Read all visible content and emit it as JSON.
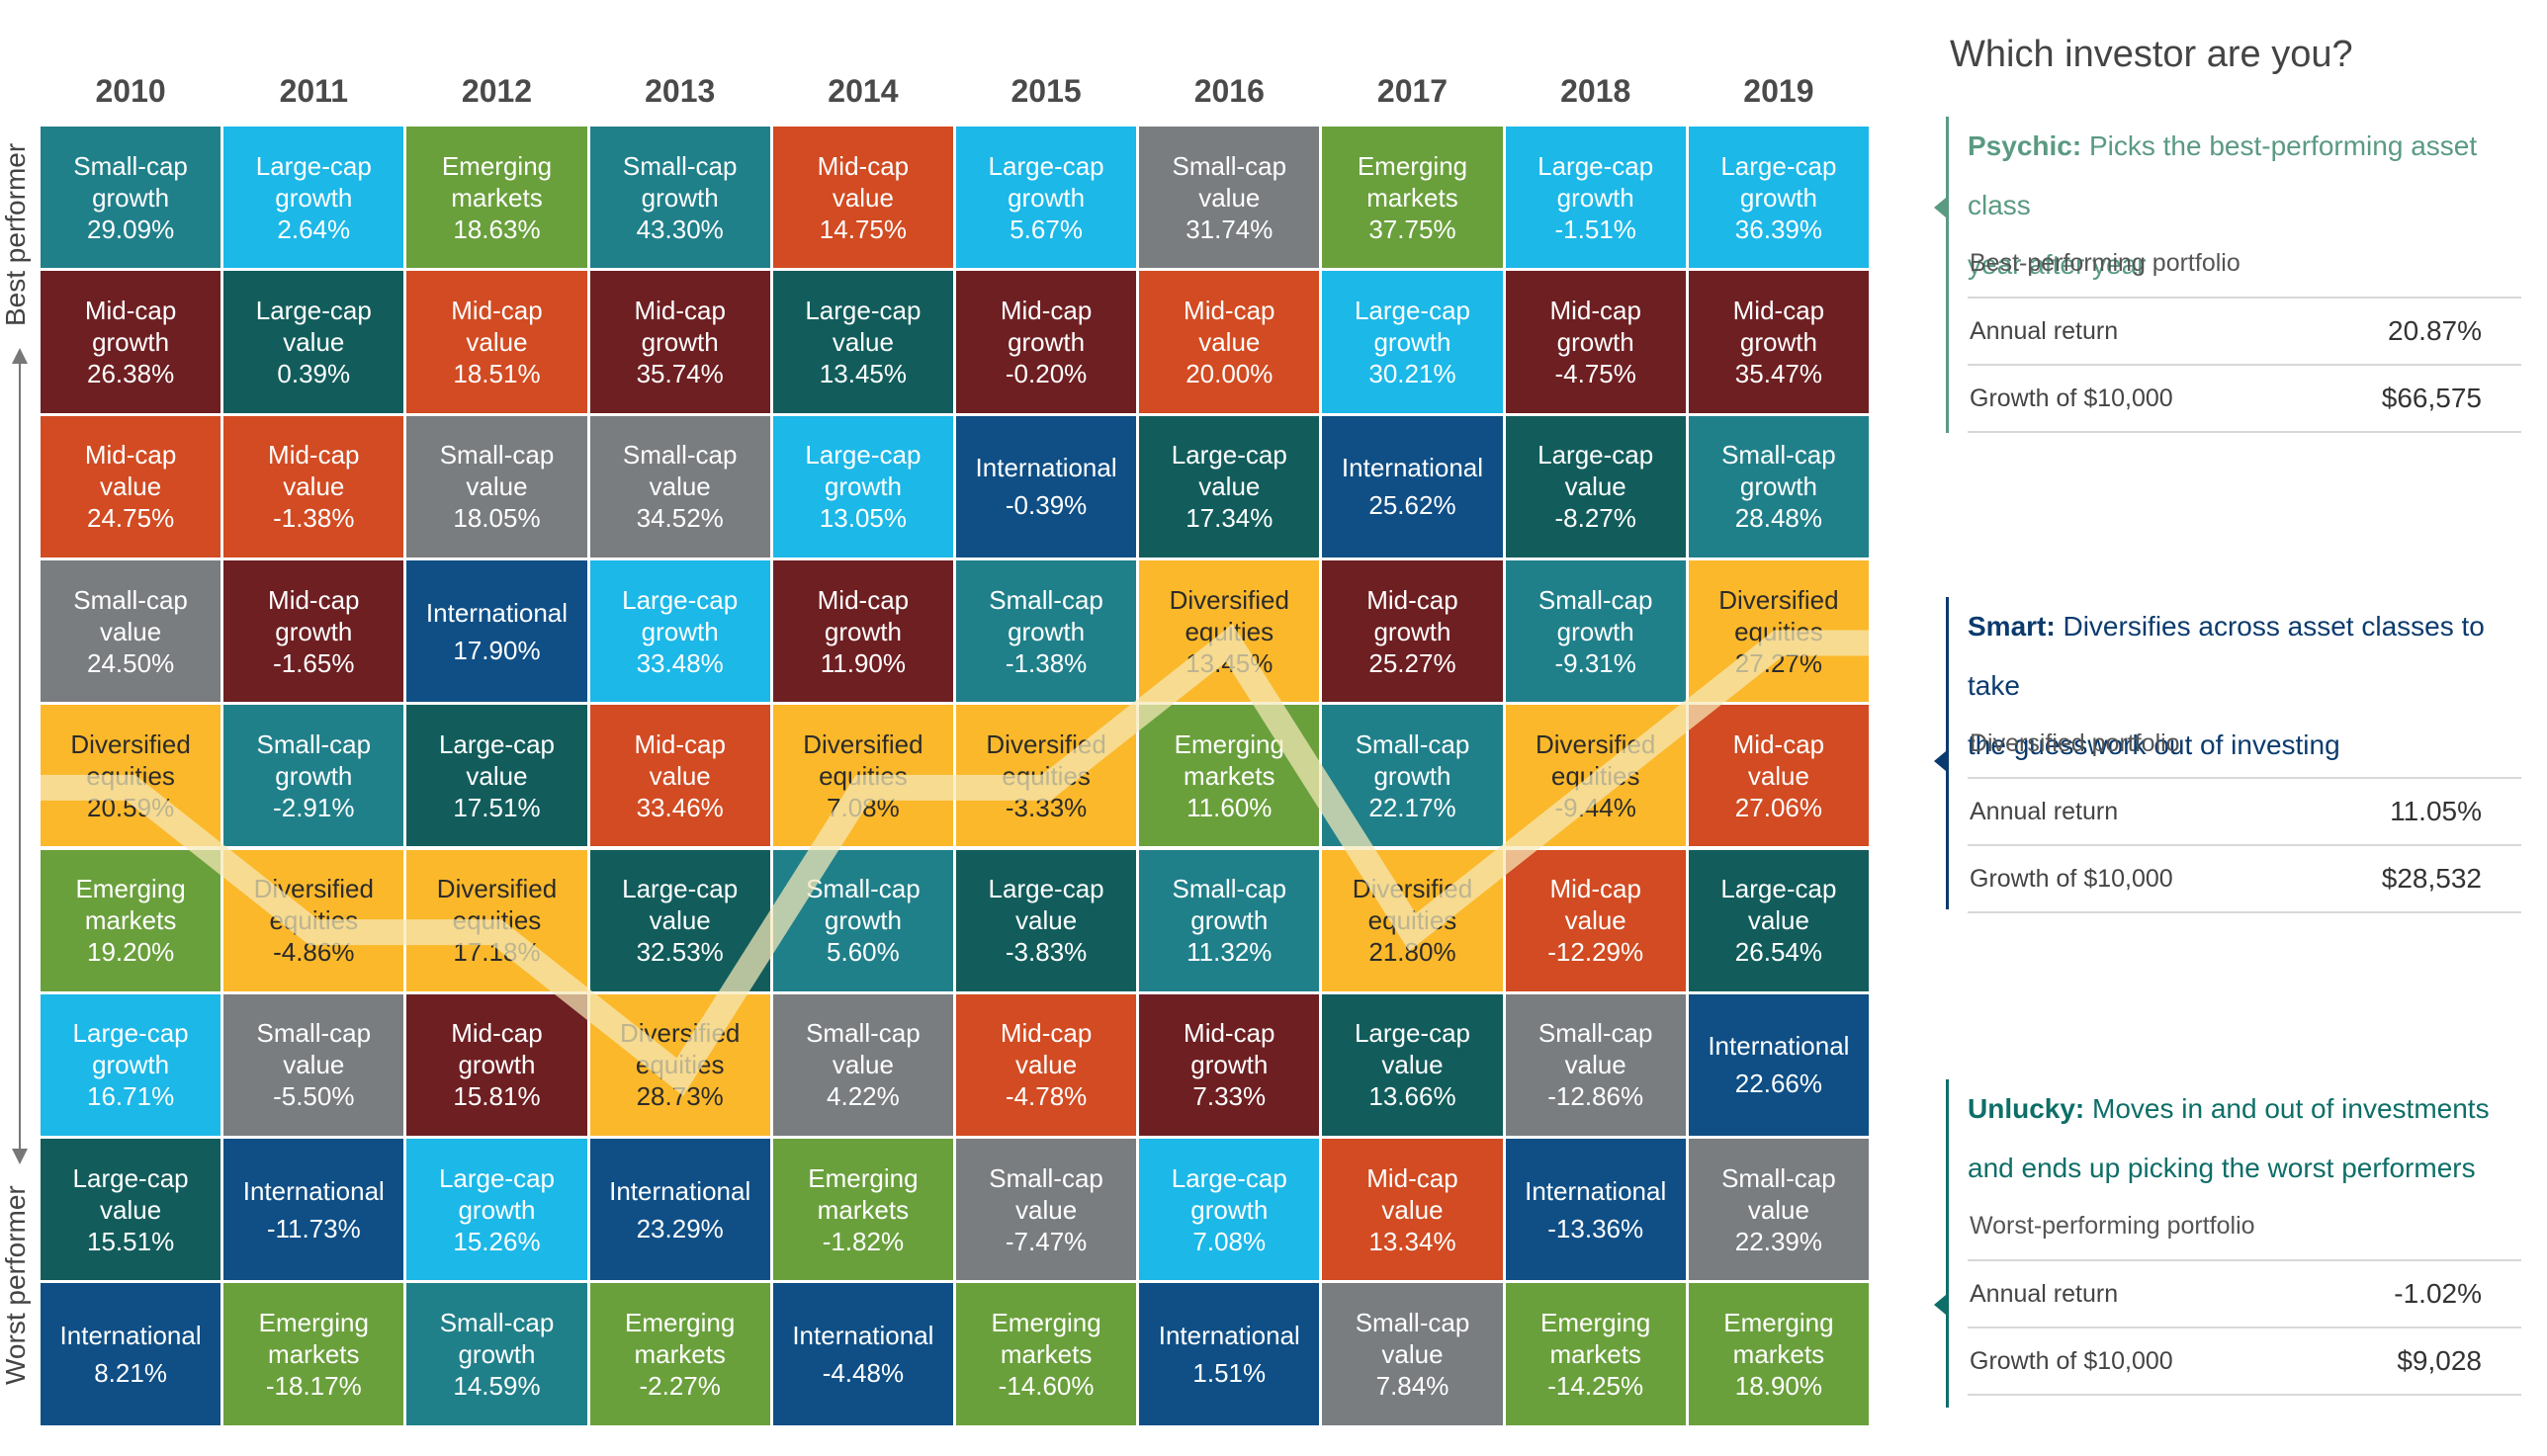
{
  "axis": {
    "best": "Best performer",
    "worst": "Worst performer"
  },
  "colors": {
    "Small-cap growth": "#20808a",
    "Large-cap growth": "#1cb8e8",
    "Emerging markets": "#6aa03c",
    "Mid-cap value": "#d24b22",
    "Small-cap value": "#7a7d80",
    "Mid-cap growth": "#6e1f22",
    "Large-cap value": "#125d5c",
    "International": "#0f4f86",
    "Diversified equities": "#fbb82a",
    "highlight_line": "#f5e9b8",
    "psychic": "#5a9a82",
    "smart": "#0b3b6e",
    "unlucky": "#0e6e68"
  },
  "chart_data": {
    "type": "table",
    "years": [
      "2010",
      "2011",
      "2012",
      "2013",
      "2014",
      "2015",
      "2016",
      "2017",
      "2018",
      "2019"
    ],
    "columns": [
      [
        [
          "Small-cap",
          "growth",
          "29.09%"
        ],
        [
          "Mid-cap",
          "growth",
          "26.38%"
        ],
        [
          "Mid-cap",
          "value",
          "24.75%"
        ],
        [
          "Small-cap",
          "value",
          "24.50%"
        ],
        [
          "Diversified",
          "equities",
          "20.59%"
        ],
        [
          "Emerging",
          "markets",
          "19.20%"
        ],
        [
          "Large-cap",
          "growth",
          "16.71%"
        ],
        [
          "Large-cap",
          "value",
          "15.51%"
        ],
        [
          "International",
          "",
          "8.21%"
        ]
      ],
      [
        [
          "Large-cap",
          "growth",
          "2.64%"
        ],
        [
          "Large-cap",
          "value",
          "0.39%"
        ],
        [
          "Mid-cap",
          "value",
          "-1.38%"
        ],
        [
          "Mid-cap",
          "growth",
          "-1.65%"
        ],
        [
          "Small-cap",
          "growth",
          "-2.91%"
        ],
        [
          "Diversified",
          "equities",
          "-4.86%"
        ],
        [
          "Small-cap",
          "value",
          "-5.50%"
        ],
        [
          "International",
          "",
          "-11.73%"
        ],
        [
          "Emerging",
          "markets",
          "-18.17%"
        ]
      ],
      [
        [
          "Emerging",
          "markets",
          "18.63%"
        ],
        [
          "Mid-cap",
          "value",
          "18.51%"
        ],
        [
          "Small-cap",
          "value",
          "18.05%"
        ],
        [
          "International",
          "",
          "17.90%"
        ],
        [
          "Large-cap",
          "value",
          "17.51%"
        ],
        [
          "Diversified",
          "equities",
          "17.18%"
        ],
        [
          "Mid-cap",
          "growth",
          "15.81%"
        ],
        [
          "Large-cap",
          "growth",
          "15.26%"
        ],
        [
          "Small-cap",
          "growth",
          "14.59%"
        ]
      ],
      [
        [
          "Small-cap",
          "growth",
          "43.30%"
        ],
        [
          "Mid-cap",
          "growth",
          "35.74%"
        ],
        [
          "Small-cap",
          "value",
          "34.52%"
        ],
        [
          "Large-cap",
          "growth",
          "33.48%"
        ],
        [
          "Mid-cap",
          "value",
          "33.46%"
        ],
        [
          "Large-cap",
          "value",
          "32.53%"
        ],
        [
          "Diversified",
          "equities",
          "28.73%"
        ],
        [
          "International",
          "",
          "23.29%"
        ],
        [
          "Emerging",
          "markets",
          "-2.27%"
        ]
      ],
      [
        [
          "Mid-cap",
          "value",
          "14.75%"
        ],
        [
          "Large-cap",
          "value",
          "13.45%"
        ],
        [
          "Large-cap",
          "growth",
          "13.05%"
        ],
        [
          "Mid-cap",
          "growth",
          "11.90%"
        ],
        [
          "Diversified",
          "equities",
          "7.08%"
        ],
        [
          "Small-cap",
          "growth",
          "5.60%"
        ],
        [
          "Small-cap",
          "value",
          "4.22%"
        ],
        [
          "Emerging",
          "markets",
          "-1.82%"
        ],
        [
          "International",
          "",
          "-4.48%"
        ]
      ],
      [
        [
          "Large-cap",
          "growth",
          "5.67%"
        ],
        [
          "Mid-cap",
          "growth",
          "-0.20%"
        ],
        [
          "International",
          "",
          "-0.39%"
        ],
        [
          "Small-cap",
          "growth",
          "-1.38%"
        ],
        [
          "Diversified",
          "equities",
          "-3.33%"
        ],
        [
          "Large-cap",
          "value",
          "-3.83%"
        ],
        [
          "Mid-cap",
          "value",
          "-4.78%"
        ],
        [
          "Small-cap",
          "value",
          "-7.47%"
        ],
        [
          "Emerging",
          "markets",
          "-14.60%"
        ]
      ],
      [
        [
          "Small-cap",
          "value",
          "31.74%"
        ],
        [
          "Mid-cap",
          "value",
          "20.00%"
        ],
        [
          "Large-cap",
          "value",
          "17.34%"
        ],
        [
          "Diversified",
          "equities",
          "13.45%"
        ],
        [
          "Emerging",
          "markets",
          "11.60%"
        ],
        [
          "Small-cap",
          "growth",
          "11.32%"
        ],
        [
          "Mid-cap",
          "growth",
          "7.33%"
        ],
        [
          "Large-cap",
          "growth",
          "7.08%"
        ],
        [
          "International",
          "",
          "1.51%"
        ]
      ],
      [
        [
          "Emerging",
          "markets",
          "37.75%"
        ],
        [
          "Large-cap",
          "growth",
          "30.21%"
        ],
        [
          "International",
          "",
          "25.62%"
        ],
        [
          "Mid-cap",
          "growth",
          "25.27%"
        ],
        [
          "Small-cap",
          "growth",
          "22.17%"
        ],
        [
          "Diversified",
          "equities",
          "21.80%"
        ],
        [
          "Large-cap",
          "value",
          "13.66%"
        ],
        [
          "Mid-cap",
          "value",
          "13.34%"
        ],
        [
          "Small-cap",
          "value",
          "7.84%"
        ]
      ],
      [
        [
          "Large-cap",
          "growth",
          "-1.51%"
        ],
        [
          "Mid-cap",
          "growth",
          "-4.75%"
        ],
        [
          "Large-cap",
          "value",
          "-8.27%"
        ],
        [
          "Small-cap",
          "growth",
          "-9.31%"
        ],
        [
          "Diversified",
          "equities",
          "-9.44%"
        ],
        [
          "Mid-cap",
          "value",
          "-12.29%"
        ],
        [
          "Small-cap",
          "value",
          "-12.86%"
        ],
        [
          "International",
          "",
          "-13.36%"
        ],
        [
          "Emerging",
          "markets",
          "-14.25%"
        ]
      ],
      [
        [
          "Large-cap",
          "growth",
          "36.39%"
        ],
        [
          "Mid-cap",
          "growth",
          "35.47%"
        ],
        [
          "Small-cap",
          "growth",
          "28.48%"
        ],
        [
          "Diversified",
          "equities",
          "27.27%"
        ],
        [
          "Mid-cap",
          "value",
          "27.06%"
        ],
        [
          "Large-cap",
          "value",
          "26.54%"
        ],
        [
          "International",
          "",
          "22.66%"
        ],
        [
          "Small-cap",
          "value",
          "22.39%"
        ],
        [
          "Emerging",
          "markets",
          "18.90%"
        ]
      ]
    ],
    "highlight_series": "Diversified equities"
  },
  "panel": {
    "title": "Which investor are you?",
    "investors": [
      {
        "key": "psychic",
        "name": "Psychic:",
        "line1": "Picks the best-performing asset class",
        "line2": "year after year",
        "portfolio": "Best-performing portfolio",
        "return_label": "Annual return",
        "return_value": "20.87%",
        "growth_label": "Growth of $10,000",
        "growth_value": "$66,575"
      },
      {
        "key": "smart",
        "name": "Smart:",
        "line1": "Diversifies across asset classes to take",
        "line2": "the guesswork out of investing",
        "portfolio": "Diversified portfolio",
        "return_label": "Annual return",
        "return_value": "11.05%",
        "growth_label": "Growth of $10,000",
        "growth_value": "$28,532"
      },
      {
        "key": "unlucky",
        "name": "Unlucky:",
        "line1": "Moves in and out of investments",
        "line2": "and ends up picking the worst performers",
        "portfolio": "Worst-performing portfolio",
        "return_label": "Annual return",
        "return_value": "-1.02%",
        "growth_label": "Growth of $10,000",
        "growth_value": "$9,028"
      }
    ]
  }
}
